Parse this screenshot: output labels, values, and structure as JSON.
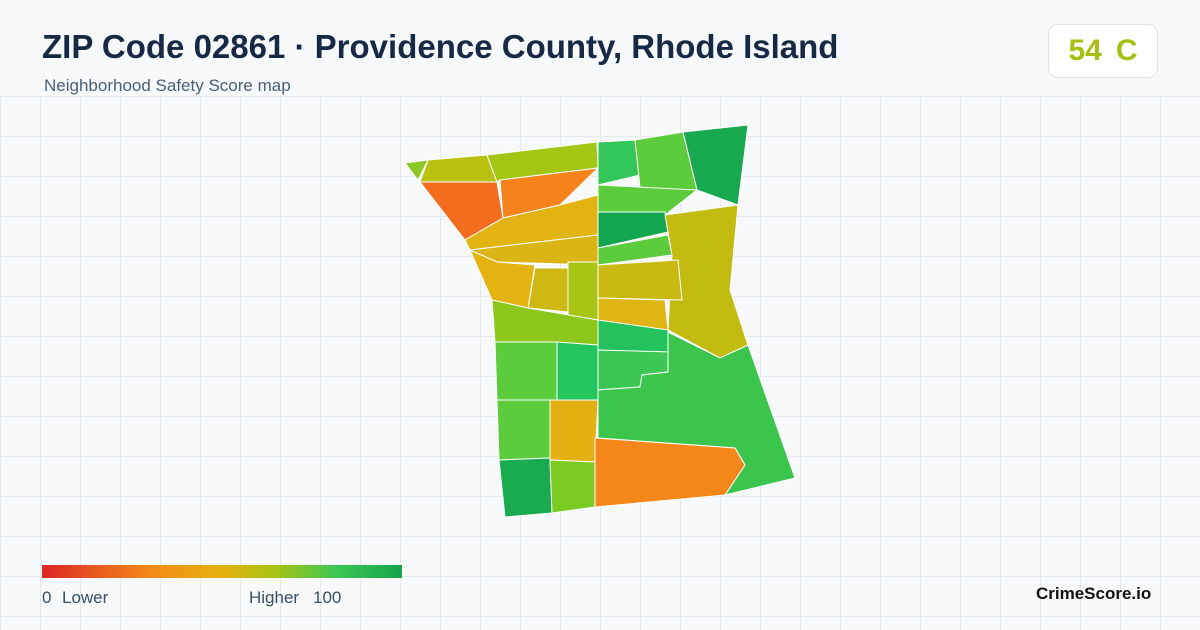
{
  "header": {
    "title": "ZIP Code 02861 · Providence County, Rhode Island",
    "subtitle": "Neighborhood Safety Score map"
  },
  "score": {
    "value": 54,
    "grade": "C"
  },
  "legend": {
    "min": 0,
    "min_label": "Lower",
    "max_label": "Higher",
    "max": 100
  },
  "brand": "CrimeScore.io"
}
